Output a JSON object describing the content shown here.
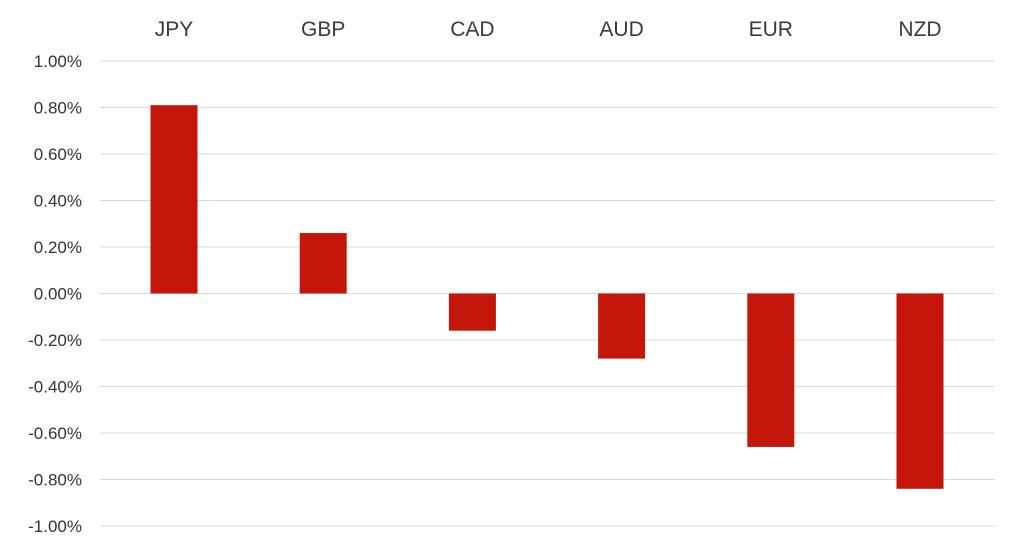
{
  "chart_data": {
    "type": "bar",
    "title": "",
    "xlabel": "",
    "ylabel": "",
    "categories": [
      "JPY",
      "GBP",
      "CAD",
      "AUD",
      "EUR",
      "NZD"
    ],
    "values": [
      0.81,
      0.26,
      -0.16,
      -0.28,
      -0.66,
      -0.84
    ],
    "ylim": [
      -1.0,
      1.0
    ],
    "yticks": [
      "1.00%",
      "0.80%",
      "0.60%",
      "0.40%",
      "0.20%",
      "0.00%",
      "-0.20%",
      "-0.40%",
      "-0.60%",
      "-0.80%",
      "-1.00%"
    ],
    "grid": true,
    "category_axis_position": "top",
    "bar_color": "#c4160a",
    "grid_color": "#d9d9d9"
  }
}
